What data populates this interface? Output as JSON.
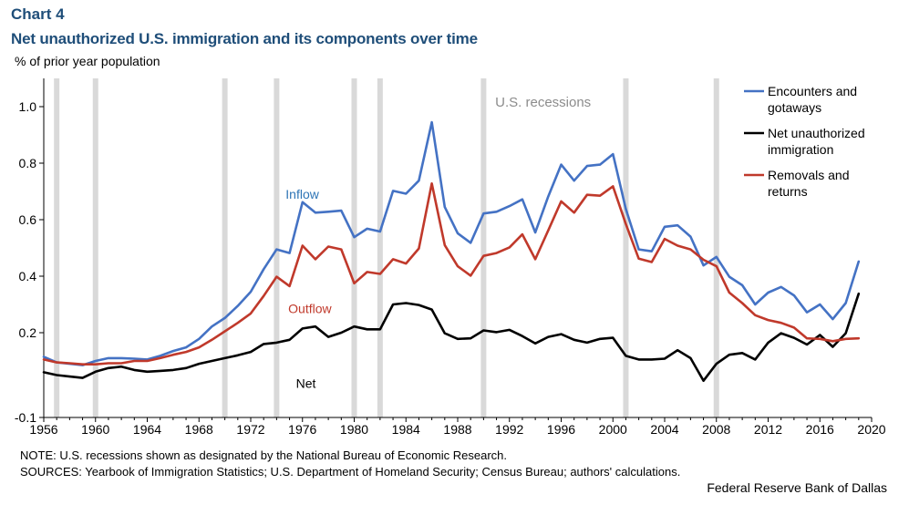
{
  "chart_data": {
    "type": "line",
    "label": "Chart 4",
    "title": "Net unauthorized U.S. immigration and its components over time",
    "ylabel": "% of prior year population",
    "xlabel": "",
    "xlim": [
      1956,
      2020
    ],
    "ylim": [
      -0.1,
      1.1
    ],
    "xticks": [
      1956,
      1960,
      1964,
      1968,
      1972,
      1976,
      1980,
      1984,
      1988,
      1992,
      1996,
      2000,
      2004,
      2008,
      2012,
      2016,
      2020
    ],
    "yticks": [
      -0.1,
      0.2,
      0.4,
      0.6,
      0.8,
      1.0
    ],
    "ytick_labels": [
      "-0.1",
      "0.2",
      "0.4",
      "0.6",
      "0.8",
      "1.0"
    ],
    "recessions": [
      1957,
      1960,
      1970,
      1974,
      1980,
      1982,
      1990,
      2001,
      2008
    ],
    "recession_label": "U.S. recessions",
    "x": [
      1956,
      1957,
      1958,
      1959,
      1960,
      1961,
      1962,
      1963,
      1964,
      1965,
      1966,
      1967,
      1968,
      1969,
      1970,
      1971,
      1972,
      1973,
      1974,
      1975,
      1976,
      1977,
      1978,
      1979,
      1980,
      1981,
      1982,
      1983,
      1984,
      1985,
      1986,
      1987,
      1988,
      1989,
      1990,
      1991,
      1992,
      1993,
      1994,
      1995,
      1996,
      1997,
      1998,
      1999,
      2000,
      2001,
      2002,
      2003,
      2004,
      2005,
      2006,
      2007,
      2008,
      2009,
      2010,
      2011,
      2012,
      2013,
      2014,
      2015,
      2016,
      2017,
      2018,
      2019
    ],
    "series": [
      {
        "name": "Encounters and gotaways",
        "color": "#4472c4",
        "values": [
          0.115,
          0.095,
          0.09,
          0.085,
          0.1,
          0.11,
          0.11,
          0.108,
          0.105,
          0.118,
          0.135,
          0.148,
          0.178,
          0.222,
          0.252,
          0.295,
          0.345,
          0.425,
          0.495,
          0.482,
          0.662,
          0.625,
          0.628,
          0.632,
          0.538,
          0.568,
          0.558,
          0.702,
          0.692,
          0.738,
          0.945,
          0.645,
          0.552,
          0.518,
          0.622,
          0.628,
          0.648,
          0.672,
          0.555,
          0.682,
          0.795,
          0.738,
          0.79,
          0.795,
          0.832,
          0.638,
          0.495,
          0.488,
          0.575,
          0.58,
          0.54,
          0.438,
          0.468,
          0.398,
          0.368,
          0.3,
          0.342,
          0.362,
          0.332,
          0.272,
          0.3,
          0.248,
          0.305,
          0.452
        ]
      },
      {
        "name": "Net unauthorized immigration",
        "color": "#000000",
        "values": [
          0.06,
          0.05,
          0.045,
          0.04,
          0.062,
          0.075,
          0.08,
          0.068,
          0.062,
          0.065,
          0.068,
          0.075,
          0.09,
          0.1,
          0.11,
          0.12,
          0.132,
          0.16,
          0.165,
          0.175,
          0.215,
          0.222,
          0.185,
          0.2,
          0.222,
          0.212,
          0.212,
          0.3,
          0.305,
          0.298,
          0.282,
          0.198,
          0.178,
          0.18,
          0.208,
          0.202,
          0.21,
          0.188,
          0.162,
          0.185,
          0.195,
          0.175,
          0.165,
          0.178,
          0.182,
          0.118,
          0.105,
          0.105,
          0.108,
          0.138,
          0.11,
          0.03,
          0.09,
          0.122,
          0.128,
          0.105,
          0.165,
          0.198,
          0.182,
          0.158,
          0.192,
          0.15,
          0.198,
          0.338
        ]
      },
      {
        "name": "Removals and returns",
        "color": "#c0392b",
        "values": [
          0.105,
          0.095,
          0.092,
          0.088,
          0.088,
          0.092,
          0.092,
          0.1,
          0.1,
          0.11,
          0.122,
          0.132,
          0.148,
          0.175,
          0.205,
          0.235,
          0.268,
          0.33,
          0.398,
          0.365,
          0.508,
          0.46,
          0.505,
          0.495,
          0.375,
          0.415,
          0.408,
          0.46,
          0.445,
          0.498,
          0.728,
          0.51,
          0.435,
          0.402,
          0.472,
          0.482,
          0.502,
          0.548,
          0.46,
          0.562,
          0.665,
          0.625,
          0.688,
          0.685,
          0.718,
          0.585,
          0.462,
          0.45,
          0.532,
          0.508,
          0.495,
          0.458,
          0.435,
          0.342,
          0.305,
          0.262,
          0.245,
          0.235,
          0.218,
          0.18,
          0.178,
          0.17,
          0.178,
          0.18
        ]
      }
    ],
    "annotations": [
      {
        "text": "Inflow",
        "x": 1974.7,
        "y": 0.675,
        "color": "#2e75b6"
      },
      {
        "text": "Outflow",
        "x": 1974.9,
        "y": 0.27,
        "color": "#c0392b"
      },
      {
        "text": "Net",
        "x": 1975.5,
        "y": 0.005,
        "color": "#000000"
      }
    ],
    "legend": {
      "placement": "top-right",
      "entries": [
        {
          "lines": [
            "Encounters and",
            "gotaways"
          ],
          "color": "#4472c4"
        },
        {
          "lines": [
            "Net unauthorized",
            "immigration"
          ],
          "color": "#000000"
        },
        {
          "lines": [
            "Removals and",
            "returns"
          ],
          "color": "#c0392b"
        }
      ]
    }
  },
  "notes": {
    "note": "NOTE: U.S. recessions shown as designated by the National Bureau of Economic Research.",
    "sources": "SOURCES: Yearbook of Immigration Statistics; U.S. Department of Homeland Security; Census Bureau; authors' calculations.",
    "credit": "Federal Reserve Bank of Dallas"
  }
}
